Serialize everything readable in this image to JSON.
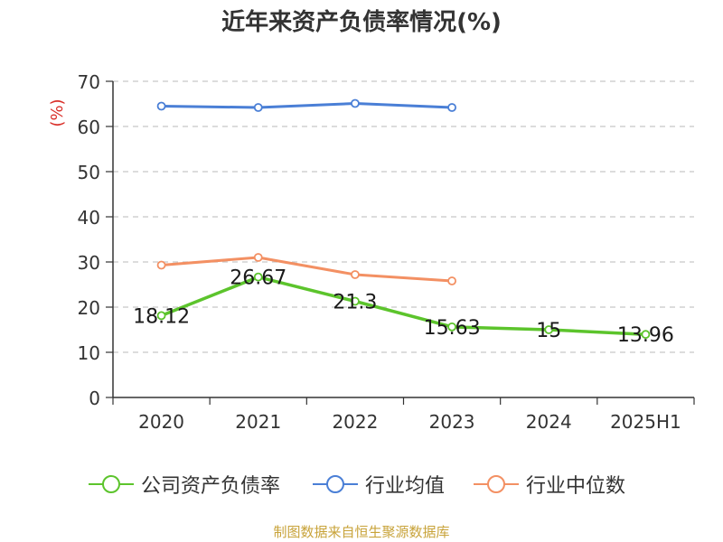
{
  "chart_data": {
    "type": "line",
    "title": "近年来资产负债率情况(%)",
    "ylabel": "(%)",
    "xlabel": "",
    "ylim": [
      0,
      70
    ],
    "yticks": [
      0,
      10,
      20,
      30,
      40,
      50,
      60,
      70
    ],
    "categories": [
      "2020",
      "2021",
      "2022",
      "2023",
      "2024",
      "2025H1"
    ],
    "grid": true,
    "legend_position": "bottom",
    "series": [
      {
        "name": "公司资产负债率",
        "color": "#5cc42c",
        "values": [
          18.12,
          26.67,
          21.3,
          15.63,
          15,
          13.96
        ],
        "labels": [
          "18.12",
          "26.67",
          "21.3",
          "15.63",
          "15",
          "13.96"
        ]
      },
      {
        "name": "行业均值",
        "color": "#4a7fd6",
        "values": [
          64.5,
          64.2,
          65.1,
          64.2,
          null,
          null
        ]
      },
      {
        "name": "行业中位数",
        "color": "#f39063",
        "values": [
          29.3,
          31.0,
          27.2,
          25.8,
          null,
          null
        ]
      }
    ]
  },
  "footer": {
    "source": "制图数据来自恒生聚源数据库"
  }
}
